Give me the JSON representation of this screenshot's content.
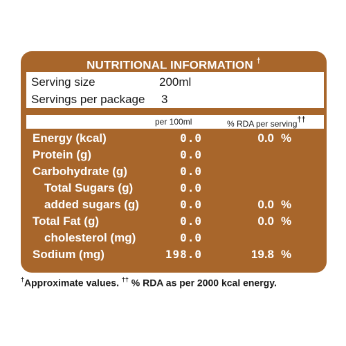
{
  "panel": {
    "title": "NUTRITIONAL INFORMATION",
    "title_mark": "†",
    "serving": {
      "size_label": "Serving size",
      "size_value": "200ml",
      "per_package_label": "Servings per package",
      "per_package_value": "3"
    },
    "columns": {
      "per100": "per 100ml",
      "rda": "% RDA per serving",
      "rda_mark": "††"
    },
    "rows": [
      {
        "label": "Energy (kcal)",
        "per100": "0.0",
        "rda": "0.0",
        "pct": "%"
      },
      {
        "label": "Protein (g)",
        "per100": "0.0",
        "rda": "",
        "pct": ""
      },
      {
        "label": "Carbohydrate (g)",
        "per100": "0.0",
        "rda": "",
        "pct": ""
      },
      {
        "label": "Total Sugars (g)",
        "per100": "0.0",
        "rda": "",
        "pct": ""
      },
      {
        "label": "added sugars (g)",
        "per100": "0.0",
        "rda": "0.0",
        "pct": "%"
      },
      {
        "label": "Total Fat (g)",
        "per100": "0.0",
        "rda": "0.0",
        "pct": "%"
      },
      {
        "label": "cholesterol (mg)",
        "per100": "0.0",
        "rda": "",
        "pct": ""
      },
      {
        "label": "Sodium (mg)",
        "per100": "198.0",
        "rda": "19.8",
        "pct": "%"
      }
    ]
  },
  "footnote": {
    "mark1": "†",
    "text1": "Approximate values. ",
    "mark2": "††",
    "text2": " % RDA as per 2000 kcal energy."
  },
  "colors": {
    "panel": "#a8662b",
    "header_text": "#ffffff",
    "body_text": "#1a1a1a"
  }
}
